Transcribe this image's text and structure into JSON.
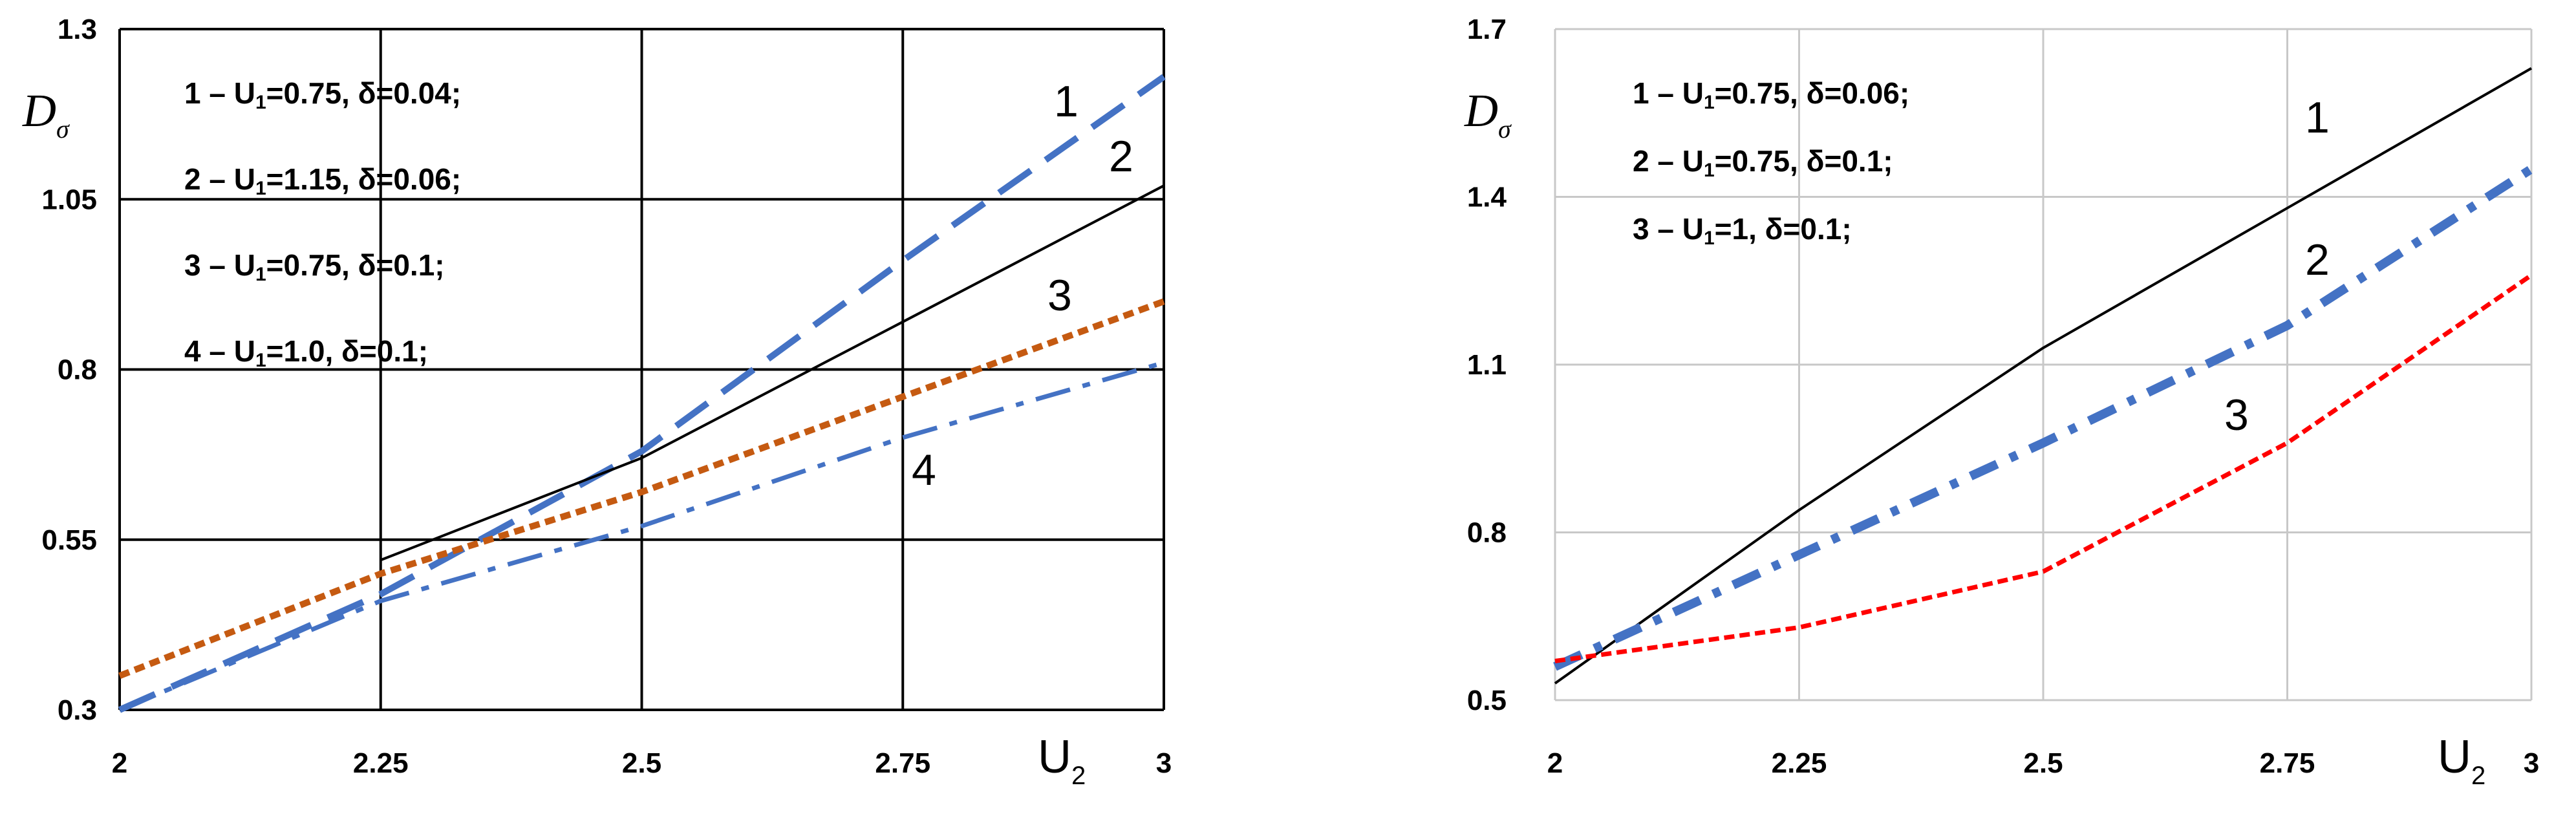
{
  "chart_data": [
    {
      "type": "line",
      "title": "",
      "xlabel": "U",
      "xlabel_sub": "2",
      "ylabel": "D",
      "ylabel_sub": "σ",
      "xlim": [
        2,
        3
      ],
      "ylim": [
        0.3,
        1.3
      ],
      "x_ticks": [
        2,
        2.25,
        2.5,
        2.75,
        3
      ],
      "y_ticks": [
        0.3,
        0.55,
        0.8,
        1.05,
        1.3
      ],
      "x_tick_labels": [
        "2",
        "2.25",
        "2.5",
        "2.75",
        "3"
      ],
      "y_tick_labels": [
        "0.3",
        "0.55",
        "0.8",
        "1.05",
        "1.3"
      ],
      "grid": true,
      "legend_position": "top-left",
      "series": [
        {
          "label": "1",
          "legend": {
            "prefix": "1 – U",
            "sub": "1",
            "suffix": "=0.75, δ=0.04;"
          },
          "color": "#4472C4",
          "style": "dashed",
          "x": [
            2,
            2.25,
            2.5,
            2.75,
            3
          ],
          "y": [
            0.3,
            0.47,
            0.68,
            0.96,
            1.23
          ]
        },
        {
          "label": "2",
          "legend": {
            "prefix": "2 – U",
            "sub": "1",
            "suffix": "=1.15, δ=0.06;"
          },
          "color": "#000000",
          "style": "solid",
          "x": [
            2.25,
            2.5,
            2.75,
            3
          ],
          "y": [
            0.52,
            0.67,
            0.87,
            1.07
          ]
        },
        {
          "label": "3",
          "legend": {
            "prefix": "3 – U",
            "sub": "1",
            "suffix": "=0.75, δ=0.1;"
          },
          "color": "#C55A11",
          "style": "dotted",
          "x": [
            2,
            2.25,
            2.5,
            2.75,
            3
          ],
          "y": [
            0.35,
            0.5,
            0.62,
            0.76,
            0.9
          ]
        },
        {
          "label": "4",
          "legend": {
            "prefix": "4 – U",
            "sub": "1",
            "suffix": "=1.0, δ=0.1;"
          },
          "color": "#4472C4",
          "style": "dashdot",
          "x": [
            2,
            2.25,
            2.5,
            2.75,
            3
          ],
          "y": [
            0.3,
            0.46,
            0.57,
            0.7,
            0.81
          ]
        }
      ]
    },
    {
      "type": "line",
      "title": "",
      "xlabel": "U",
      "xlabel_sub": "2",
      "ylabel": "D",
      "ylabel_sub": "σ",
      "xlim": [
        2,
        3
      ],
      "ylim": [
        0.5,
        1.7
      ],
      "x_ticks": [
        2,
        2.25,
        2.5,
        2.75,
        3
      ],
      "y_ticks": [
        0.5,
        0.8,
        1.1,
        1.4,
        1.7
      ],
      "x_tick_labels": [
        "2",
        "2.25",
        "2.5",
        "2.75",
        "3"
      ],
      "y_tick_labels": [
        "0.5",
        "0.8",
        "1.1",
        "1.4",
        "1.7"
      ],
      "grid": true,
      "legend_position": "top-left",
      "series": [
        {
          "label": "1",
          "legend": {
            "prefix": "1 – U",
            "sub": "1",
            "suffix": "=0.75, δ=0.06;"
          },
          "color": "#000000",
          "style": "solid",
          "x": [
            2,
            2.25,
            2.5,
            2.75,
            3
          ],
          "y": [
            0.53,
            0.84,
            1.13,
            1.38,
            1.63
          ]
        },
        {
          "label": "2",
          "legend": {
            "prefix": "2 – U",
            "sub": "1",
            "suffix": "=0.75, δ=0.1;"
          },
          "color": "#4472C4",
          "style": "dashdot",
          "x": [
            2,
            2.25,
            2.5,
            2.75,
            3
          ],
          "y": [
            0.56,
            0.76,
            0.96,
            1.17,
            1.45
          ]
        },
        {
          "label": "3",
          "legend": {
            "prefix": "3 – U",
            "sub": "1",
            "suffix": "=1, δ=0.1;"
          },
          "color": "#FF0000",
          "style": "dotted",
          "x": [
            2,
            2.25,
            2.5,
            2.75,
            3
          ],
          "y": [
            0.57,
            0.63,
            0.73,
            0.96,
            1.26
          ]
        }
      ]
    }
  ]
}
